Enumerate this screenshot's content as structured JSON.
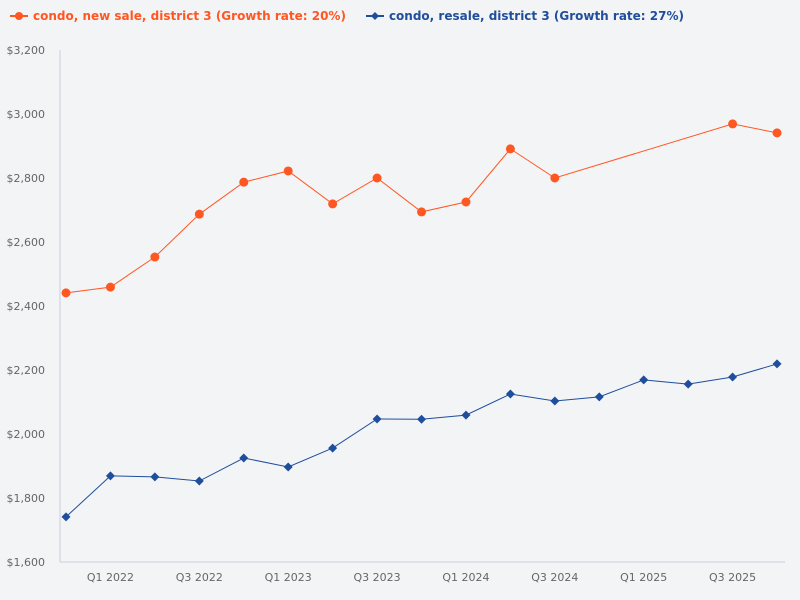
{
  "chart_data": {
    "type": "line",
    "title": "",
    "xlabel": "",
    "ylabel": "",
    "ylim": [
      1600,
      3200
    ],
    "yticks": [
      "$1,600",
      "$1,800",
      "$2,000",
      "$2,200",
      "$2,400",
      "$2,600",
      "$2,800",
      "$3,000",
      "$3,200"
    ],
    "ytick_values": [
      1600,
      1800,
      2000,
      2200,
      2400,
      2600,
      2800,
      3000,
      3200
    ],
    "x": [
      "Q4 2021",
      "Q1 2022",
      "Q2 2022",
      "Q3 2022",
      "Q4 2022",
      "Q1 2023",
      "Q2 2023",
      "Q3 2023",
      "Q4 2023",
      "Q1 2024",
      "Q2 2024",
      "Q3 2024",
      "Q4 2024",
      "Q1 2025",
      "Q2 2025",
      "Q3 2025",
      "Q4 2025"
    ],
    "xtick_labels": [
      "Q1 2022",
      "Q3 2022",
      "Q1 2023",
      "Q3 2023",
      "Q1 2024",
      "Q3 2024",
      "Q1 2025",
      "Q3 2025"
    ],
    "grid": false,
    "legend_position": "top-left",
    "series": [
      {
        "name": "condo, new sale, district 3 (Growth rate: 20%)",
        "color": "#ff5722",
        "marker": "circle",
        "values": [
          2441,
          2459,
          2553,
          2687,
          2787,
          2822,
          2719,
          2800,
          2694,
          2725,
          2891,
          2800,
          null,
          null,
          null,
          2969,
          2941
        ]
      },
      {
        "name": "condo, resale, district 3 (Growth rate: 27%)",
        "color": "#1f4e9c",
        "marker": "diamond",
        "values": [
          1741,
          1869,
          1866,
          1853,
          1925,
          1897,
          1956,
          2047,
          2046,
          2059,
          2125,
          2103,
          2116,
          2169,
          2156,
          2178,
          2219
        ]
      }
    ]
  }
}
